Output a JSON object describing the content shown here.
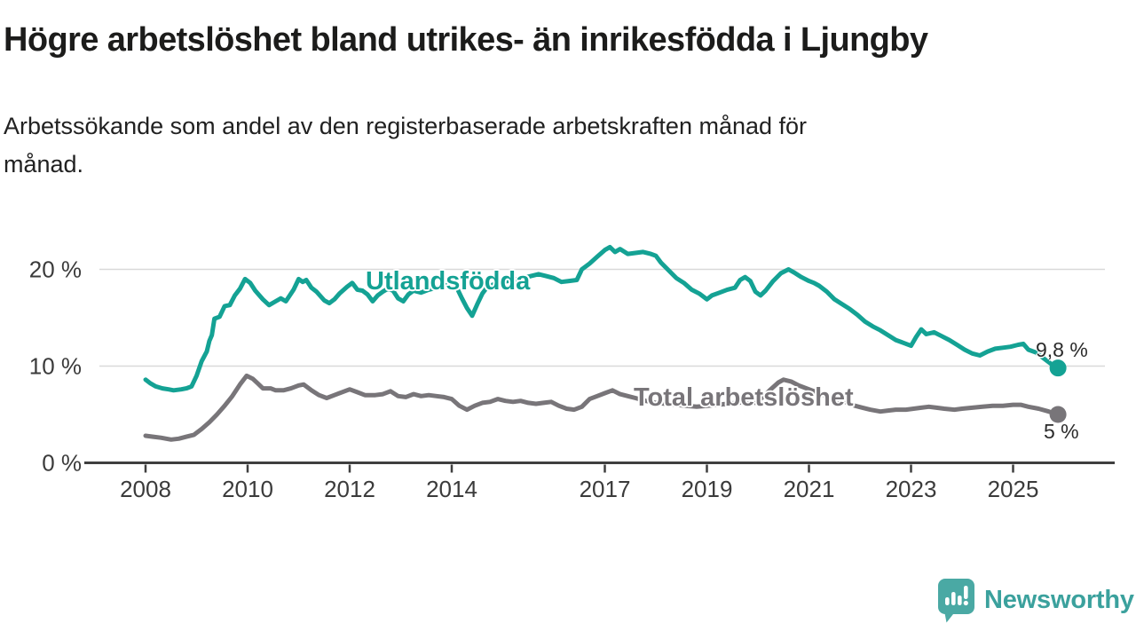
{
  "header": {
    "title": "Högre arbetslöshet bland utrikes- än inrikesfödda i Ljungby",
    "subtitle_lines": [
      "Arbetssökande som andel av den registerbaserade arbetskraften månad för",
      "månad."
    ]
  },
  "footer": {
    "brand": "Newsworthy"
  },
  "colors": {
    "series_foreign": "#14a294",
    "series_total": "#787579",
    "grid": "#d9d9d9",
    "axis": "#3f3f3f",
    "tick_text": "#3b3b3b",
    "brand_teal": "#4aa9a4"
  },
  "chart_data": {
    "type": "line",
    "title": "Högre arbetslöshet bland utrikes- än inrikesfödda i Ljungby",
    "subtitle": "Arbetssökande som andel av den registerbaserade arbetskraften månad för månad.",
    "unit": "%",
    "xlabel": "",
    "ylabel": "",
    "x_ticks": [
      2008,
      2010,
      2012,
      2014,
      2017,
      2019,
      2021,
      2023,
      2025
    ],
    "y_ticks": [
      0,
      10,
      20
    ],
    "y_tick_suffix": " %",
    "xlim": [
      2007.8,
      2026.3
    ],
    "ylim": [
      0,
      23
    ],
    "grid": "horizontal-only",
    "legend_position": "inline-labels",
    "series": [
      {
        "name": "Utlandsfödda",
        "color": "#14a294",
        "end_label": "9,8 %",
        "end_value": 9.8,
        "points": [
          [
            2008.0,
            8.6
          ],
          [
            2008.1,
            8.2
          ],
          [
            2008.2,
            7.9
          ],
          [
            2008.33,
            7.7
          ],
          [
            2008.45,
            7.6
          ],
          [
            2008.55,
            7.5
          ],
          [
            2008.7,
            7.6
          ],
          [
            2008.8,
            7.7
          ],
          [
            2008.9,
            7.9
          ],
          [
            2009.0,
            9.0
          ],
          [
            2009.1,
            10.5
          ],
          [
            2009.2,
            11.5
          ],
          [
            2009.25,
            12.6
          ],
          [
            2009.3,
            13.2
          ],
          [
            2009.35,
            14.9
          ],
          [
            2009.45,
            15.1
          ],
          [
            2009.55,
            16.2
          ],
          [
            2009.65,
            16.3
          ],
          [
            2009.75,
            17.3
          ],
          [
            2009.85,
            18.0
          ],
          [
            2009.95,
            19.0
          ],
          [
            2010.05,
            18.6
          ],
          [
            2010.15,
            17.8
          ],
          [
            2010.3,
            16.9
          ],
          [
            2010.42,
            16.3
          ],
          [
            2010.55,
            16.7
          ],
          [
            2010.65,
            17.0
          ],
          [
            2010.75,
            16.7
          ],
          [
            2010.9,
            17.9
          ],
          [
            2011.0,
            19.0
          ],
          [
            2011.08,
            18.7
          ],
          [
            2011.15,
            18.9
          ],
          [
            2011.25,
            18.1
          ],
          [
            2011.35,
            17.7
          ],
          [
            2011.5,
            16.8
          ],
          [
            2011.6,
            16.5
          ],
          [
            2011.7,
            16.9
          ],
          [
            2011.8,
            17.5
          ],
          [
            2011.95,
            18.2
          ],
          [
            2012.05,
            18.6
          ],
          [
            2012.15,
            17.9
          ],
          [
            2012.25,
            17.8
          ],
          [
            2012.35,
            17.4
          ],
          [
            2012.45,
            16.7
          ],
          [
            2012.55,
            17.3
          ],
          [
            2012.65,
            17.7
          ],
          [
            2012.75,
            18.0
          ],
          [
            2012.85,
            17.8
          ],
          [
            2012.95,
            17.0
          ],
          [
            2013.05,
            16.7
          ],
          [
            2013.15,
            17.4
          ],
          [
            2013.25,
            17.8
          ],
          [
            2013.4,
            17.6
          ],
          [
            2013.55,
            17.9
          ],
          [
            2013.7,
            18.1
          ],
          [
            2013.85,
            18.3
          ],
          [
            2014.0,
            18.5
          ],
          [
            2014.1,
            18.1
          ],
          [
            2014.2,
            17.0
          ],
          [
            2014.3,
            16.0
          ],
          [
            2014.4,
            15.2
          ],
          [
            2014.5,
            16.4
          ],
          [
            2014.6,
            17.5
          ],
          [
            2014.7,
            18.2
          ],
          [
            2014.85,
            18.5
          ],
          [
            2015.0,
            18.7
          ],
          [
            2015.2,
            18.9
          ],
          [
            2015.4,
            19.1
          ],
          [
            2015.55,
            19.3
          ],
          [
            2015.7,
            19.5
          ],
          [
            2015.85,
            19.3
          ],
          [
            2016.0,
            19.1
          ],
          [
            2016.15,
            18.7
          ],
          [
            2016.3,
            18.8
          ],
          [
            2016.45,
            18.9
          ],
          [
            2016.55,
            20.0
          ],
          [
            2016.7,
            20.6
          ],
          [
            2016.85,
            21.3
          ],
          [
            2017.0,
            22.0
          ],
          [
            2017.1,
            22.3
          ],
          [
            2017.2,
            21.8
          ],
          [
            2017.3,
            22.1
          ],
          [
            2017.45,
            21.6
          ],
          [
            2017.6,
            21.7
          ],
          [
            2017.75,
            21.8
          ],
          [
            2017.9,
            21.6
          ],
          [
            2018.0,
            21.4
          ],
          [
            2018.1,
            20.7
          ],
          [
            2018.25,
            19.9
          ],
          [
            2018.4,
            19.1
          ],
          [
            2018.55,
            18.6
          ],
          [
            2018.7,
            17.9
          ],
          [
            2018.85,
            17.5
          ],
          [
            2019.0,
            16.9
          ],
          [
            2019.1,
            17.3
          ],
          [
            2019.25,
            17.6
          ],
          [
            2019.4,
            17.9
          ],
          [
            2019.55,
            18.1
          ],
          [
            2019.65,
            18.9
          ],
          [
            2019.75,
            19.2
          ],
          [
            2019.85,
            18.8
          ],
          [
            2019.95,
            17.7
          ],
          [
            2020.05,
            17.3
          ],
          [
            2020.15,
            17.8
          ],
          [
            2020.3,
            18.8
          ],
          [
            2020.45,
            19.6
          ],
          [
            2020.6,
            20.0
          ],
          [
            2020.7,
            19.7
          ],
          [
            2020.85,
            19.2
          ],
          [
            2021.0,
            18.8
          ],
          [
            2021.1,
            18.6
          ],
          [
            2021.2,
            18.3
          ],
          [
            2021.35,
            17.7
          ],
          [
            2021.5,
            16.9
          ],
          [
            2021.65,
            16.4
          ],
          [
            2021.8,
            15.9
          ],
          [
            2021.95,
            15.3
          ],
          [
            2022.1,
            14.6
          ],
          [
            2022.25,
            14.1
          ],
          [
            2022.4,
            13.7
          ],
          [
            2022.55,
            13.2
          ],
          [
            2022.7,
            12.7
          ],
          [
            2022.85,
            12.4
          ],
          [
            2023.0,
            12.1
          ],
          [
            2023.1,
            13.0
          ],
          [
            2023.2,
            13.8
          ],
          [
            2023.3,
            13.3
          ],
          [
            2023.45,
            13.5
          ],
          [
            2023.6,
            13.1
          ],
          [
            2023.75,
            12.7
          ],
          [
            2023.9,
            12.2
          ],
          [
            2024.05,
            11.7
          ],
          [
            2024.2,
            11.3
          ],
          [
            2024.35,
            11.1
          ],
          [
            2024.5,
            11.5
          ],
          [
            2024.65,
            11.8
          ],
          [
            2024.8,
            11.9
          ],
          [
            2024.95,
            12.0
          ],
          [
            2025.1,
            12.2
          ],
          [
            2025.2,
            12.3
          ],
          [
            2025.3,
            11.7
          ],
          [
            2025.45,
            11.4
          ],
          [
            2025.6,
            10.8
          ],
          [
            2025.75,
            10.2
          ],
          [
            2025.88,
            9.8
          ]
        ]
      },
      {
        "name": "Total arbetslöshet",
        "color": "#787579",
        "end_label": "5 %",
        "end_value": 5,
        "points": [
          [
            2008.0,
            2.8
          ],
          [
            2008.15,
            2.7
          ],
          [
            2008.3,
            2.6
          ],
          [
            2008.5,
            2.4
          ],
          [
            2008.65,
            2.5
          ],
          [
            2008.8,
            2.7
          ],
          [
            2008.95,
            2.9
          ],
          [
            2009.1,
            3.5
          ],
          [
            2009.25,
            4.2
          ],
          [
            2009.4,
            5.0
          ],
          [
            2009.55,
            5.9
          ],
          [
            2009.7,
            6.9
          ],
          [
            2009.85,
            8.1
          ],
          [
            2009.98,
            9.0
          ],
          [
            2010.1,
            8.7
          ],
          [
            2010.2,
            8.2
          ],
          [
            2010.3,
            7.7
          ],
          [
            2010.45,
            7.7
          ],
          [
            2010.55,
            7.5
          ],
          [
            2010.7,
            7.5
          ],
          [
            2010.85,
            7.7
          ],
          [
            2011.0,
            8.0
          ],
          [
            2011.1,
            8.1
          ],
          [
            2011.25,
            7.5
          ],
          [
            2011.4,
            7.0
          ],
          [
            2011.55,
            6.7
          ],
          [
            2011.7,
            7.0
          ],
          [
            2011.85,
            7.3
          ],
          [
            2012.0,
            7.6
          ],
          [
            2012.15,
            7.3
          ],
          [
            2012.3,
            7.0
          ],
          [
            2012.5,
            7.0
          ],
          [
            2012.65,
            7.1
          ],
          [
            2012.8,
            7.4
          ],
          [
            2012.95,
            6.9
          ],
          [
            2013.1,
            6.8
          ],
          [
            2013.25,
            7.1
          ],
          [
            2013.4,
            6.9
          ],
          [
            2013.55,
            7.0
          ],
          [
            2013.7,
            6.9
          ],
          [
            2013.85,
            6.8
          ],
          [
            2014.0,
            6.6
          ],
          [
            2014.15,
            5.9
          ],
          [
            2014.3,
            5.5
          ],
          [
            2014.45,
            5.9
          ],
          [
            2014.6,
            6.2
          ],
          [
            2014.75,
            6.3
          ],
          [
            2014.9,
            6.6
          ],
          [
            2015.05,
            6.4
          ],
          [
            2015.2,
            6.3
          ],
          [
            2015.35,
            6.4
          ],
          [
            2015.5,
            6.2
          ],
          [
            2015.65,
            6.1
          ],
          [
            2015.8,
            6.2
          ],
          [
            2015.95,
            6.3
          ],
          [
            2016.1,
            5.9
          ],
          [
            2016.25,
            5.6
          ],
          [
            2016.4,
            5.5
          ],
          [
            2016.55,
            5.8
          ],
          [
            2016.7,
            6.6
          ],
          [
            2016.85,
            6.9
          ],
          [
            2017.0,
            7.2
          ],
          [
            2017.15,
            7.5
          ],
          [
            2017.3,
            7.1
          ],
          [
            2017.45,
            6.9
          ],
          [
            2017.6,
            6.7
          ],
          [
            2017.8,
            6.4
          ],
          [
            2018.0,
            6.2
          ],
          [
            2018.2,
            6.1
          ],
          [
            2018.4,
            6.0
          ],
          [
            2018.6,
            5.9
          ],
          [
            2018.8,
            5.8
          ],
          [
            2019.0,
            5.9
          ],
          [
            2019.2,
            6.0
          ],
          [
            2019.4,
            6.1
          ],
          [
            2019.6,
            6.2
          ],
          [
            2019.8,
            6.3
          ],
          [
            2019.95,
            6.2
          ],
          [
            2020.1,
            6.8
          ],
          [
            2020.25,
            7.6
          ],
          [
            2020.4,
            8.3
          ],
          [
            2020.5,
            8.6
          ],
          [
            2020.65,
            8.4
          ],
          [
            2020.8,
            8.0
          ],
          [
            2020.95,
            7.7
          ],
          [
            2021.1,
            7.4
          ],
          [
            2021.3,
            7.0
          ],
          [
            2021.5,
            6.6
          ],
          [
            2021.7,
            6.3
          ],
          [
            2021.9,
            5.9
          ],
          [
            2022.05,
            5.7
          ],
          [
            2022.2,
            5.5
          ],
          [
            2022.4,
            5.3
          ],
          [
            2022.55,
            5.4
          ],
          [
            2022.7,
            5.5
          ],
          [
            2022.9,
            5.5
          ],
          [
            2023.05,
            5.6
          ],
          [
            2023.2,
            5.7
          ],
          [
            2023.35,
            5.8
          ],
          [
            2023.5,
            5.7
          ],
          [
            2023.65,
            5.6
          ],
          [
            2023.85,
            5.5
          ],
          [
            2024.0,
            5.6
          ],
          [
            2024.2,
            5.7
          ],
          [
            2024.4,
            5.8
          ],
          [
            2024.6,
            5.9
          ],
          [
            2024.8,
            5.9
          ],
          [
            2025.0,
            6.0
          ],
          [
            2025.15,
            6.0
          ],
          [
            2025.3,
            5.8
          ],
          [
            2025.5,
            5.6
          ],
          [
            2025.7,
            5.3
          ],
          [
            2025.88,
            5.0
          ]
        ]
      }
    ]
  }
}
